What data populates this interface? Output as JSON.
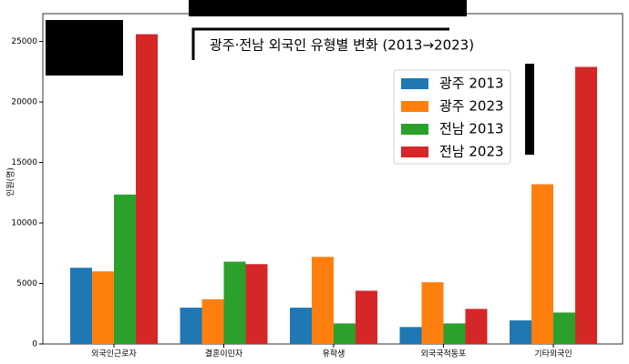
{
  "chart_data": {
    "type": "bar",
    "title": "광주·전남 외국인 유형별 변화 (2013→2023)",
    "y_label": "인원(명)",
    "categories": [
      "외국인근로자",
      "결혼이민자",
      "유학생",
      "외국국적동포",
      "기타외국인"
    ],
    "series": [
      {
        "name": "광주 2013",
        "color": "#1f77b4",
        "values": [
          6300,
          3000,
          3000,
          1400,
          1950
        ]
      },
      {
        "name": "광주 2023",
        "color": "#ff7f0e",
        "values": [
          6000,
          3700,
          7200,
          5100,
          13200
        ]
      },
      {
        "name": "전남 2013",
        "color": "#2ca02c",
        "values": [
          12350,
          6800,
          1700,
          1700,
          2600
        ]
      },
      {
        "name": "전남 2023",
        "color": "#d62728",
        "values": [
          25600,
          6600,
          4400,
          2900,
          22900
        ]
      }
    ],
    "ylim": [
      0,
      27300
    ],
    "yticks": [
      0,
      5000,
      10000,
      15000,
      20000,
      25000
    ],
    "legend": "upper right"
  }
}
